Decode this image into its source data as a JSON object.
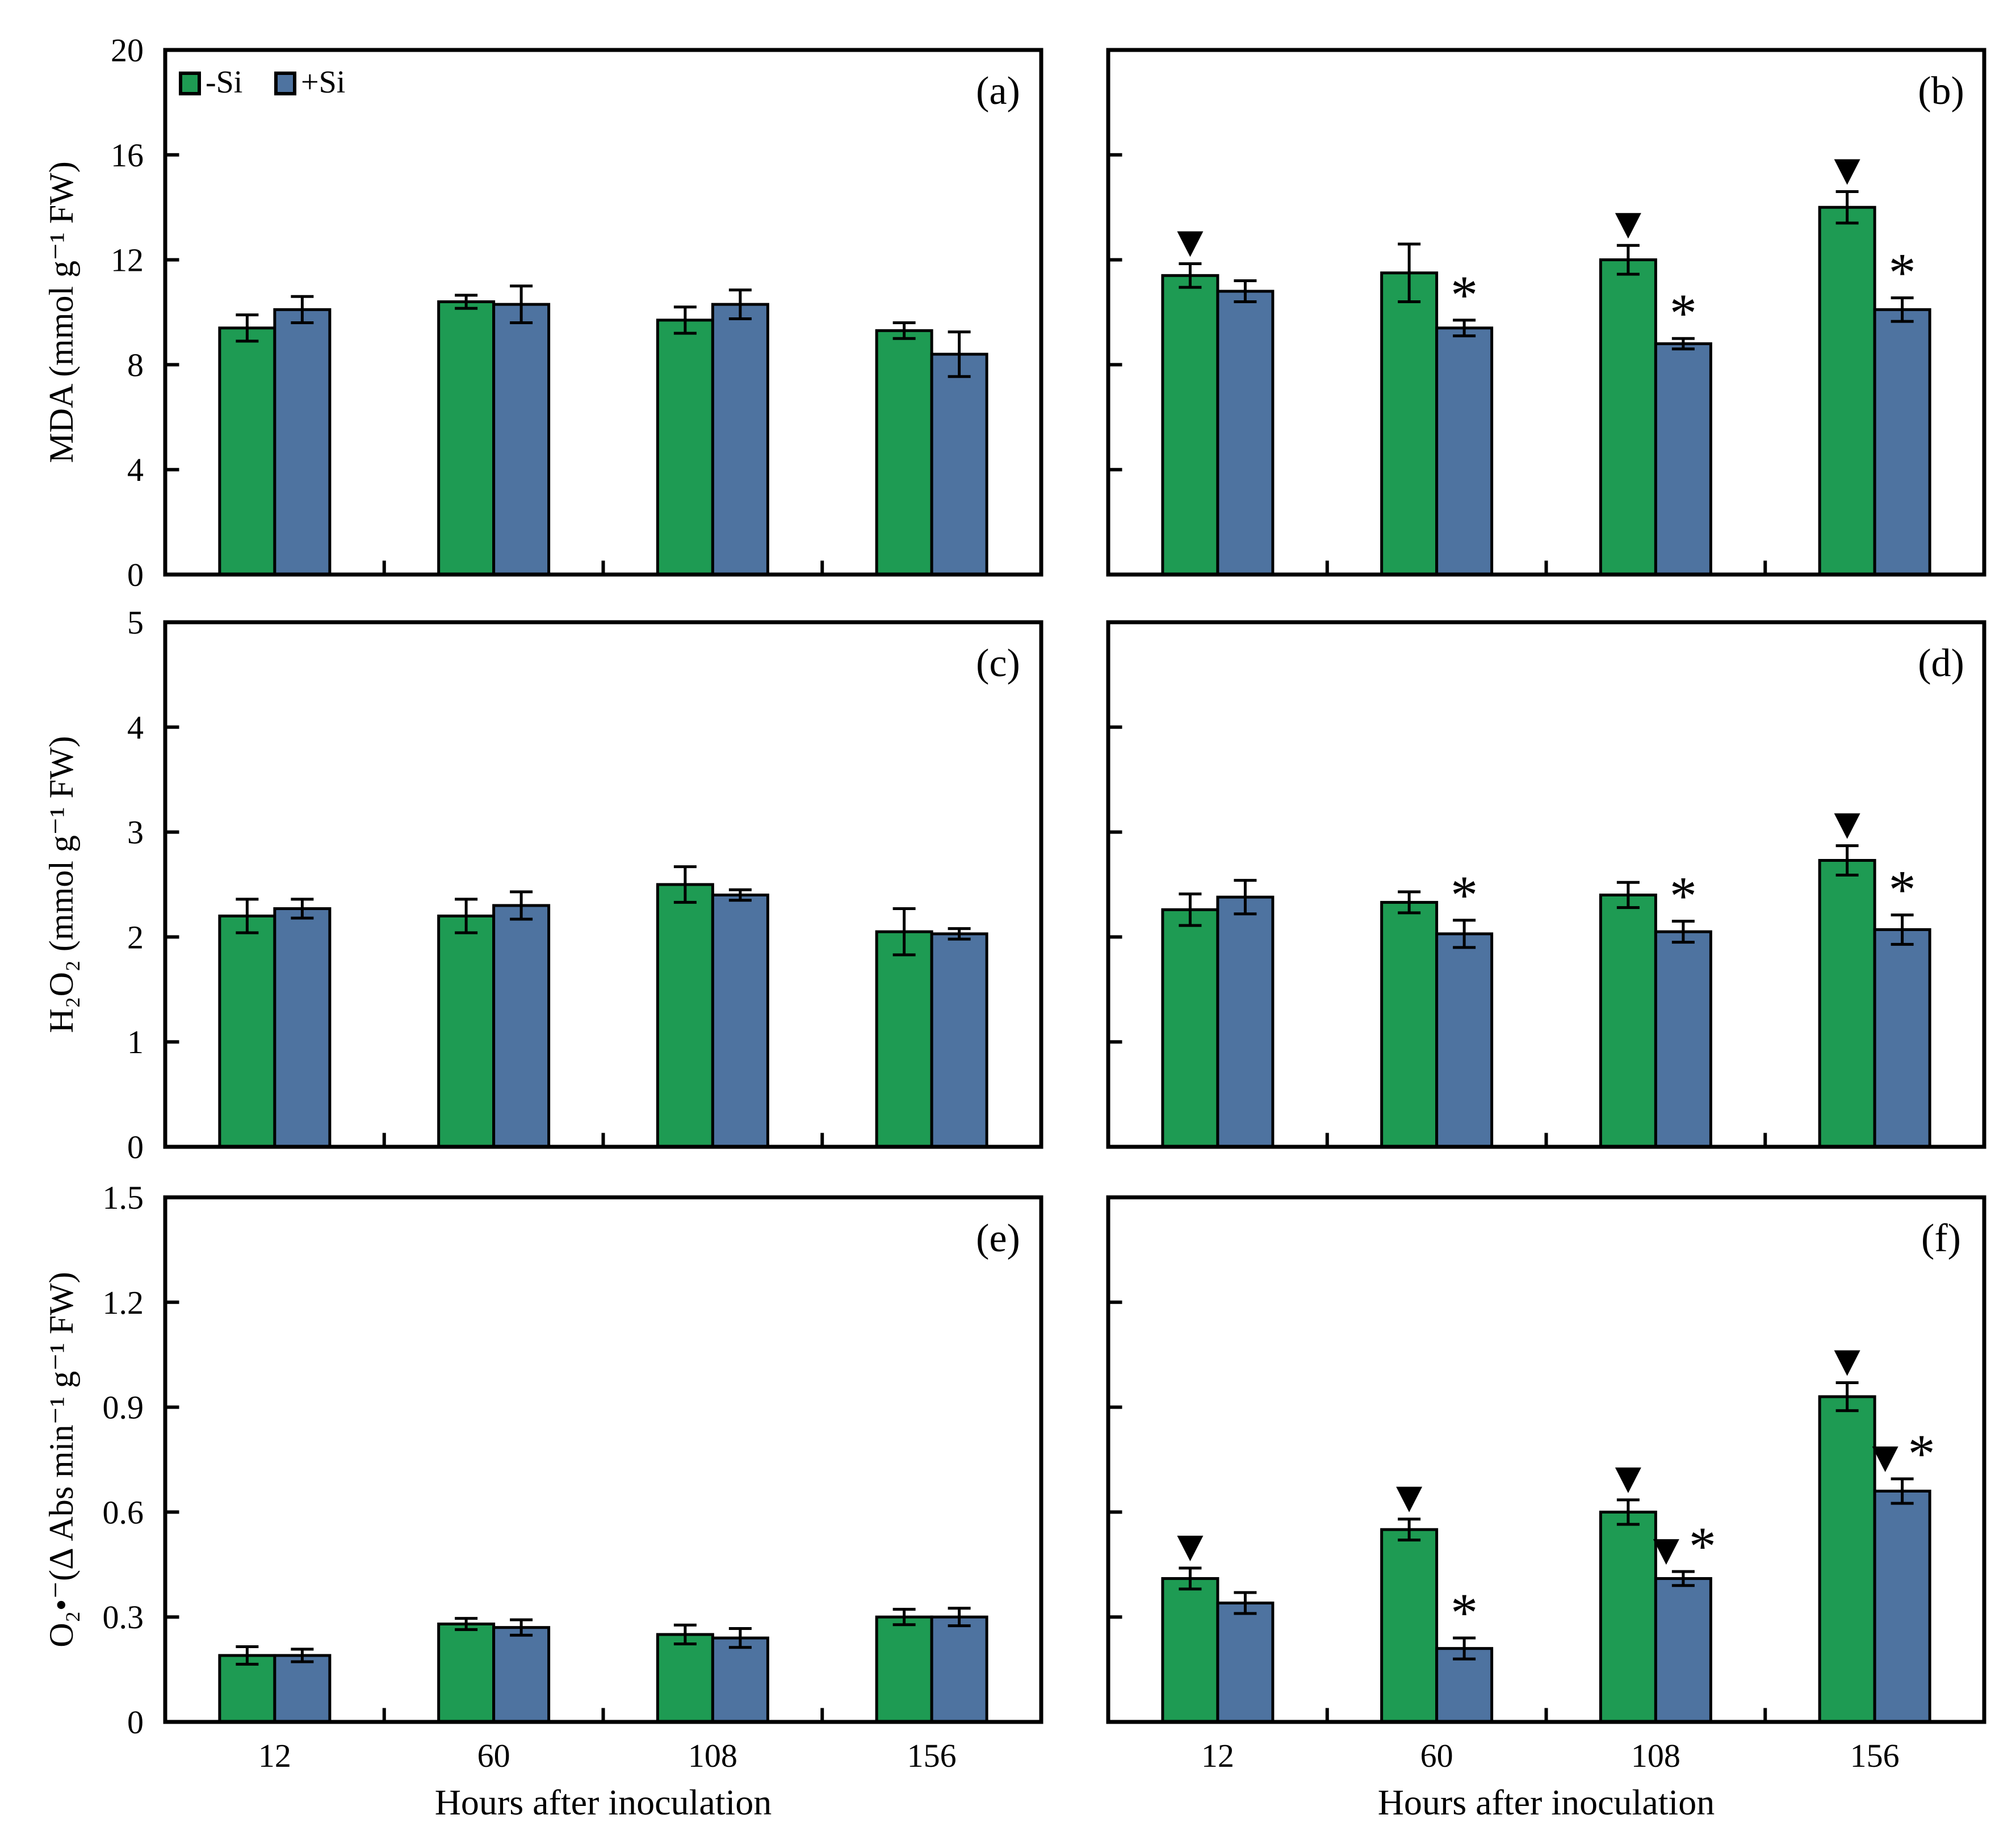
{
  "figure": {
    "background": "#ffffff",
    "axis_color": "#000000",
    "x_axis": {
      "label": "Hours after inoculation",
      "categories": [
        "12",
        "60",
        "108",
        "156"
      ]
    },
    "legend": {
      "position": "top-left inside panel (a)",
      "entries": [
        {
          "label": "-Si",
          "color": "#1E9B53"
        },
        {
          "label": "+Si",
          "color": "#4E73A0"
        }
      ]
    }
  },
  "chart_data": {
    "type": "bar",
    "layout": "3 rows x 2 columns, grouped bars with error bars, grid off, ticks inside",
    "x_label": "Hours after inoculation",
    "categories": [
      "12",
      "60",
      "108",
      "156"
    ],
    "significance_symbols": {
      "triangle": "▼",
      "asterisk": "*"
    },
    "panels": [
      {
        "panel": "(a)",
        "row": 0,
        "col": 0,
        "ylabel": "MDA (mmol g⁻¹ FW)",
        "ylim": [
          0,
          20
        ],
        "yticks": [
          "0",
          "4",
          "8",
          "12",
          "16",
          "20"
        ],
        "show_y_tick_labels": true,
        "show_x_tick_labels": false,
        "show_legend": true,
        "series": [
          {
            "name": "-Si",
            "color": "#1E9B53",
            "values": [
              9.4,
              10.4,
              9.7,
              9.3
            ],
            "errors": [
              0.5,
              0.25,
              0.5,
              0.3
            ],
            "markers": [
              "",
              "",
              "",
              ""
            ]
          },
          {
            "name": "+Si",
            "color": "#4E73A0",
            "values": [
              10.1,
              10.3,
              10.3,
              8.4
            ],
            "errors": [
              0.5,
              0.7,
              0.55,
              0.85
            ],
            "markers": [
              "",
              "",
              "",
              ""
            ]
          }
        ]
      },
      {
        "panel": "(b)",
        "row": 0,
        "col": 1,
        "ylabel": "",
        "ylim": [
          0,
          20
        ],
        "yticks": [
          "0",
          "4",
          "8",
          "12",
          "16",
          "20"
        ],
        "show_y_tick_labels": false,
        "show_x_tick_labels": false,
        "show_legend": false,
        "series": [
          {
            "name": "-Si",
            "color": "#1E9B53",
            "values": [
              11.4,
              11.5,
              12.0,
              14.0
            ],
            "errors": [
              0.45,
              1.1,
              0.55,
              0.6
            ],
            "markers": [
              "▼",
              "",
              "▼",
              "▼"
            ]
          },
          {
            "name": "+Si",
            "color": "#4E73A0",
            "values": [
              10.8,
              9.4,
              8.8,
              10.1
            ],
            "errors": [
              0.4,
              0.3,
              0.2,
              0.45
            ],
            "markers": [
              "",
              "*",
              "*",
              "*"
            ]
          }
        ]
      },
      {
        "panel": "(c)",
        "row": 1,
        "col": 0,
        "ylabel": "H₂O₂ (mmol g⁻¹ FW)",
        "ylim": [
          0,
          5
        ],
        "yticks": [
          "0",
          "1",
          "2",
          "3",
          "4",
          "5"
        ],
        "show_y_tick_labels": true,
        "show_x_tick_labels": false,
        "show_legend": false,
        "series": [
          {
            "name": "-Si",
            "color": "#1E9B53",
            "values": [
              2.2,
              2.2,
              2.5,
              2.05
            ],
            "errors": [
              0.16,
              0.16,
              0.17,
              0.22
            ],
            "markers": [
              "",
              "",
              "",
              ""
            ]
          },
          {
            "name": "+Si",
            "color": "#4E73A0",
            "values": [
              2.27,
              2.3,
              2.4,
              2.03
            ],
            "errors": [
              0.09,
              0.13,
              0.05,
              0.05
            ],
            "markers": [
              "",
              "",
              "",
              ""
            ]
          }
        ]
      },
      {
        "panel": "(d)",
        "row": 1,
        "col": 1,
        "ylabel": "",
        "ylim": [
          0,
          5
        ],
        "yticks": [
          "0",
          "1",
          "2",
          "3",
          "4",
          "5"
        ],
        "show_y_tick_labels": false,
        "show_x_tick_labels": false,
        "show_legend": false,
        "series": [
          {
            "name": "-Si",
            "color": "#1E9B53",
            "values": [
              2.26,
              2.33,
              2.4,
              2.73
            ],
            "errors": [
              0.15,
              0.1,
              0.12,
              0.14
            ],
            "markers": [
              "",
              "",
              "",
              "▼"
            ]
          },
          {
            "name": "+Si",
            "color": "#4E73A0",
            "values": [
              2.38,
              2.03,
              2.05,
              2.07
            ],
            "errors": [
              0.16,
              0.13,
              0.1,
              0.14
            ],
            "markers": [
              "",
              "*",
              "*",
              "*"
            ]
          }
        ]
      },
      {
        "panel": "(e)",
        "row": 2,
        "col": 0,
        "ylabel": "O₂•⁻(Δ Abs min⁻¹ g⁻¹ FW)",
        "ylim": [
          0,
          1.5
        ],
        "yticks": [
          "0",
          "0.3",
          "0.6",
          "0.9",
          "1.2",
          "1.5"
        ],
        "show_y_tick_labels": true,
        "show_x_tick_labels": true,
        "show_legend": false,
        "series": [
          {
            "name": "-Si",
            "color": "#1E9B53",
            "values": [
              0.19,
              0.28,
              0.25,
              0.3
            ],
            "errors": [
              0.025,
              0.016,
              0.027,
              0.022
            ],
            "markers": [
              "",
              "",
              "",
              ""
            ]
          },
          {
            "name": "+Si",
            "color": "#4E73A0",
            "values": [
              0.19,
              0.27,
              0.24,
              0.3
            ],
            "errors": [
              0.018,
              0.022,
              0.027,
              0.025
            ],
            "markers": [
              "",
              "",
              "",
              ""
            ]
          }
        ]
      },
      {
        "panel": "(f)",
        "row": 2,
        "col": 1,
        "ylabel": "",
        "ylim": [
          0,
          1.5
        ],
        "yticks": [
          "0",
          "0.3",
          "0.6",
          "0.9",
          "1.2",
          "1.5"
        ],
        "show_y_tick_labels": false,
        "show_x_tick_labels": true,
        "show_legend": false,
        "series": [
          {
            "name": "-Si",
            "color": "#1E9B53",
            "values": [
              0.41,
              0.55,
              0.6,
              0.93
            ],
            "errors": [
              0.03,
              0.03,
              0.035,
              0.04
            ],
            "markers": [
              "▼",
              "▼",
              "▼",
              "▼"
            ]
          },
          {
            "name": "+Si",
            "color": "#4E73A0",
            "values": [
              0.34,
              0.21,
              0.41,
              0.66
            ],
            "errors": [
              0.03,
              0.03,
              0.02,
              0.035
            ],
            "markers": [
              "",
              "*",
              "▼*",
              "▼*"
            ]
          }
        ]
      }
    ]
  }
}
